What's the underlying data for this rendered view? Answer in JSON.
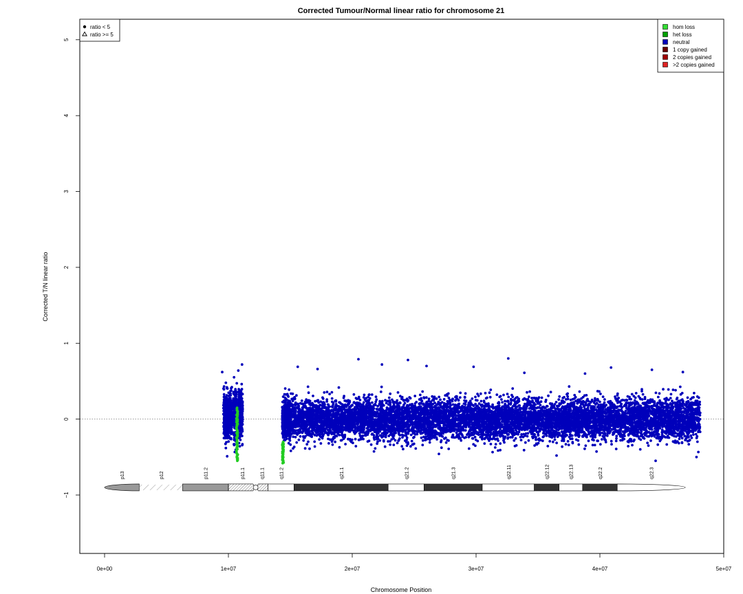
{
  "chart_data": {
    "type": "scatter",
    "title": "Corrected Tumour/Normal linear ratio for chromosome  21",
    "xlabel": "Chromosome Position",
    "ylabel": "Corrected T/N linear ratio",
    "xlim": [
      -2000000,
      50000000
    ],
    "ylim": [
      -1.77,
      5.27
    ],
    "x_ticks": [
      {
        "value": 0,
        "label": "0e+00"
      },
      {
        "value": 10000000,
        "label": "1e+07"
      },
      {
        "value": 20000000,
        "label": "2e+07"
      },
      {
        "value": 30000000,
        "label": "3e+07"
      },
      {
        "value": 40000000,
        "label": "4e+07"
      },
      {
        "value": 50000000,
        "label": "5e+07"
      }
    ],
    "y_ticks": [
      {
        "value": -1,
        "label": "−1"
      },
      {
        "value": 0,
        "label": "0"
      },
      {
        "value": 1,
        "label": "1"
      },
      {
        "value": 2,
        "label": "2"
      },
      {
        "value": 3,
        "label": "3"
      },
      {
        "value": 4,
        "label": "4"
      },
      {
        "value": 5,
        "label": "5"
      }
    ],
    "reference_line": {
      "y": 0,
      "style": "dotted",
      "color": "#777777"
    },
    "grid": false,
    "marker_legend": {
      "placement": "top-left",
      "entries": [
        {
          "symbol": "circle",
          "label": "ratio < 5"
        },
        {
          "symbol": "triangle",
          "label": "ratio >= 5"
        }
      ]
    },
    "color_legend": {
      "placement": "top-right",
      "entries": [
        {
          "label": "hom loss",
          "color": "#33dd33"
        },
        {
          "label": "het loss",
          "color": "#00a000"
        },
        {
          "label": "neutral",
          "color": "#0000bb"
        },
        {
          "label": "1 copy gained",
          "color": "#660000"
        },
        {
          "label": "2 copies gained",
          "color": "#a00000"
        },
        {
          "label": ">2 copies gained",
          "color": "#dd2222"
        }
      ]
    },
    "neutral_clusters": [
      {
        "x_start": 9600000,
        "x_end": 10300000,
        "y_mean": 0.05,
        "y_sd": 0.14,
        "n": 500
      },
      {
        "x_start": 10400000,
        "x_end": 10700000,
        "y_mean": 0.05,
        "y_sd": 0.17,
        "n": 200
      },
      {
        "x_start": 10800000,
        "x_end": 11150000,
        "y_mean": 0.05,
        "y_sd": 0.17,
        "n": 260
      },
      {
        "x_start": 14350000,
        "x_end": 15000000,
        "y_mean": 0.0,
        "y_sd": 0.12,
        "n": 500
      },
      {
        "x_start": 15000000,
        "x_end": 48100000,
        "y_mean": 0.0,
        "y_sd": 0.13,
        "n": 8500
      }
    ],
    "outlier_points": [
      {
        "x": 20500000,
        "y": 0.79
      },
      {
        "x": 24500000,
        "y": 0.78
      },
      {
        "x": 32600000,
        "y": 0.8
      },
      {
        "x": 22400000,
        "y": 0.72
      },
      {
        "x": 11100000,
        "y": 0.72
      },
      {
        "x": 26000000,
        "y": 0.7
      },
      {
        "x": 29800000,
        "y": 0.69
      },
      {
        "x": 40900000,
        "y": 0.68
      },
      {
        "x": 44200000,
        "y": 0.65
      },
      {
        "x": 15600000,
        "y": 0.69
      },
      {
        "x": 9500000,
        "y": 0.62
      },
      {
        "x": 10800000,
        "y": 0.64
      },
      {
        "x": 17200000,
        "y": 0.66
      },
      {
        "x": 46700000,
        "y": 0.62
      },
      {
        "x": 33900000,
        "y": 0.61
      },
      {
        "x": 38800000,
        "y": 0.6
      },
      {
        "x": 44500000,
        "y": -0.55
      },
      {
        "x": 36500000,
        "y": -0.48
      },
      {
        "x": 9900000,
        "y": -0.49
      },
      {
        "x": 47800000,
        "y": -0.5
      }
    ],
    "loss_segments": [
      {
        "x": 10700000,
        "y_top": 0.15,
        "y_bottom": -0.55,
        "color": "#22cc22",
        "n": 60
      },
      {
        "x": 14400000,
        "y_top": -0.3,
        "y_bottom": -0.58,
        "color": "#22cc22",
        "n": 40
      }
    ],
    "ideogram": {
      "y": -0.9,
      "bands": [
        {
          "name": "p13",
          "start": 0,
          "end": 2800000,
          "stain": "gpos50"
        },
        {
          "name": "p12",
          "start": 2800000,
          "end": 6300000,
          "stain": "stalk"
        },
        {
          "name": "p11.2",
          "start": 6300000,
          "end": 10000000,
          "stain": "gpos50"
        },
        {
          "name": "p11.1",
          "start": 10000000,
          "end": 12200000,
          "stain": "acen"
        },
        {
          "name": "q11.1",
          "start": 12200000,
          "end": 13200000,
          "stain": "acen"
        },
        {
          "name": "q11.2",
          "start": 13200000,
          "end": 15300000,
          "stain": "gneg"
        },
        {
          "name": "q21.1",
          "start": 15300000,
          "end": 22900000,
          "stain": "gpos100"
        },
        {
          "name": "q21.2",
          "start": 22900000,
          "end": 25800000,
          "stain": "gneg"
        },
        {
          "name": "q21.3",
          "start": 25800000,
          "end": 30500000,
          "stain": "gpos100"
        },
        {
          "name": "q22.11",
          "start": 30500000,
          "end": 34700000,
          "stain": "gneg"
        },
        {
          "name": "q22.12",
          "start": 34700000,
          "end": 36700000,
          "stain": "gpos100"
        },
        {
          "name": "q22.13",
          "start": 36700000,
          "end": 38600000,
          "stain": "gneg"
        },
        {
          "name": "q22.2",
          "start": 38600000,
          "end": 41400000,
          "stain": "gpos100"
        },
        {
          "name": "q22.3",
          "start": 41400000,
          "end": 46900000,
          "stain": "gneg"
        }
      ]
    }
  }
}
